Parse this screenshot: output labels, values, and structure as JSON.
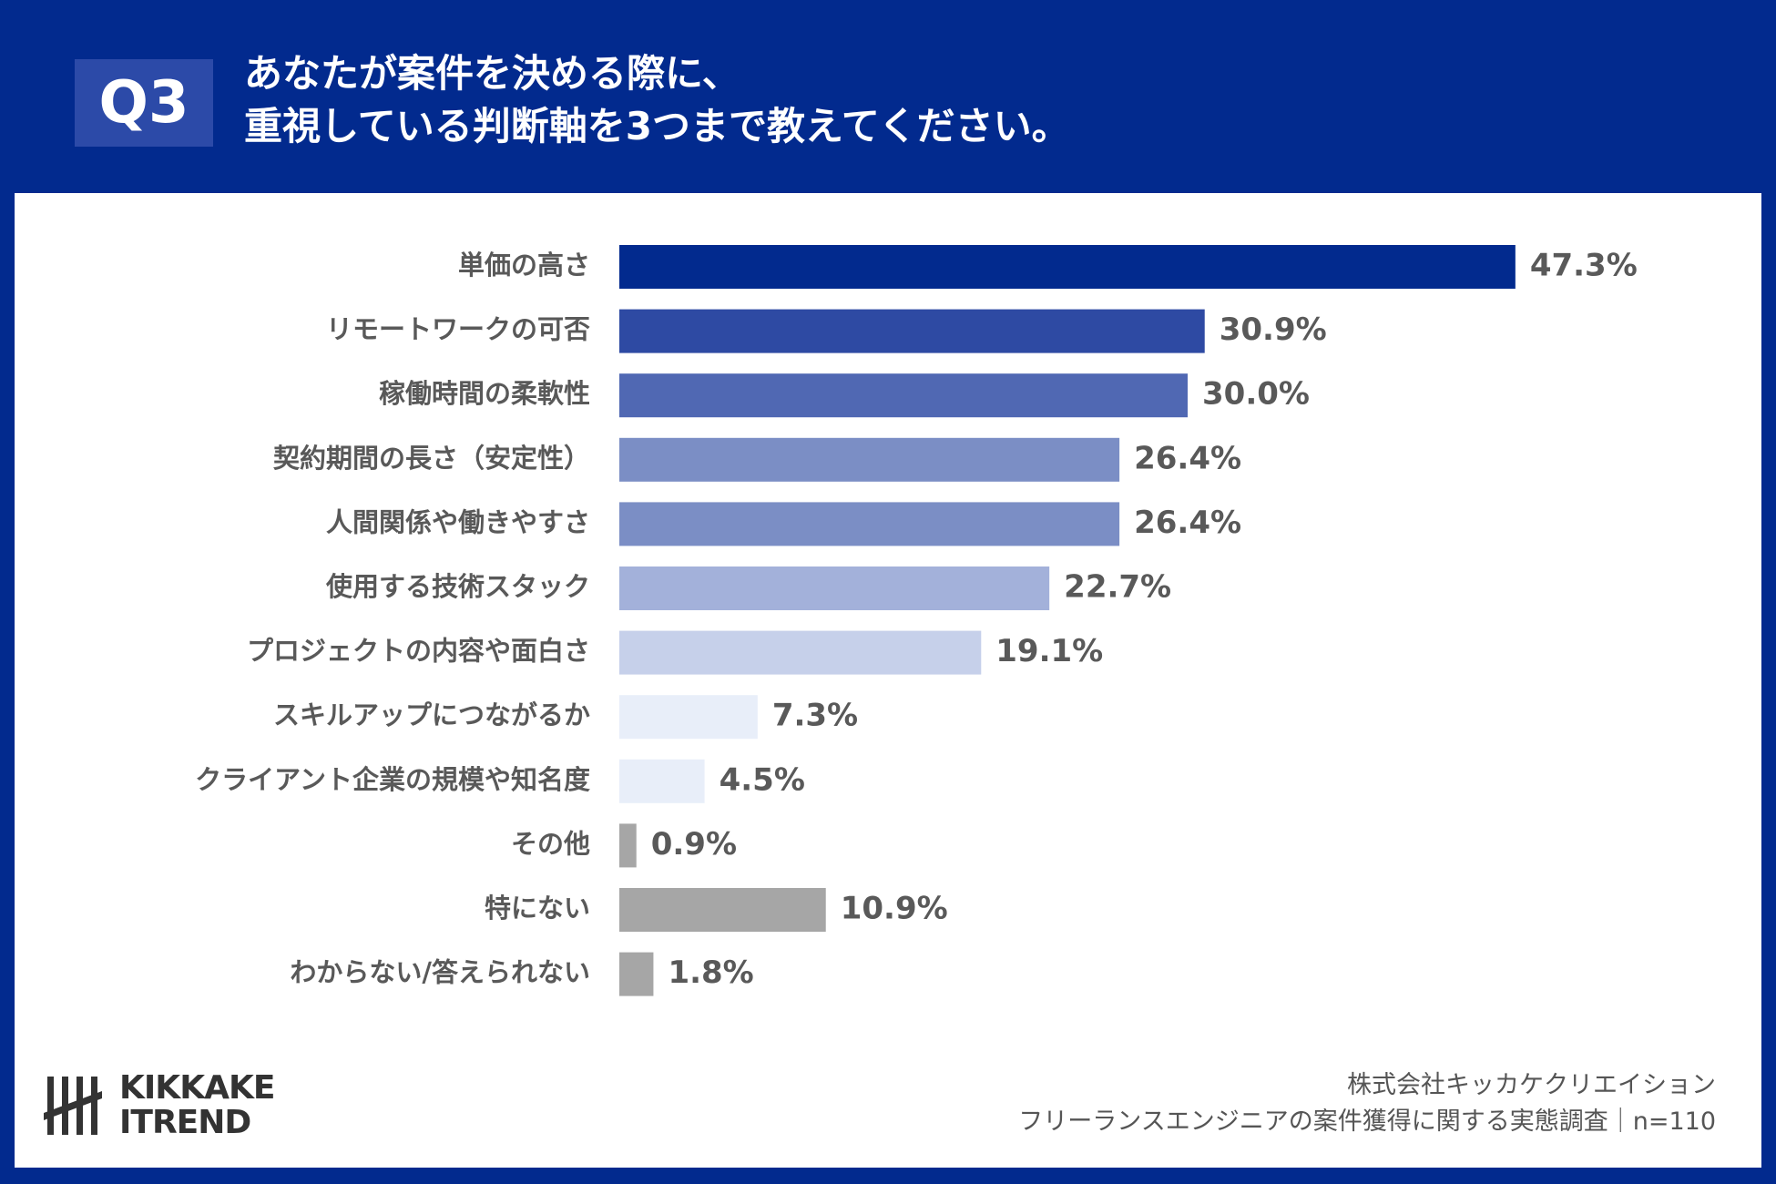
{
  "header": {
    "badge": "Q3",
    "title_line1": "あなたが案件を決める際に、",
    "title_line2": "重視している判断軸を3つまで教えてください。"
  },
  "chart_data": {
    "type": "bar",
    "orientation": "horizontal",
    "categories": [
      "単価の高さ",
      "リモートワークの可否",
      "稼働時間の柔軟性",
      "契約期間の長さ（安定性）",
      "人間関係や働きやすさ",
      "使用する技術スタック",
      "プロジェクトの内容や面白さ",
      "スキルアップにつながるか",
      "クライアント企業の規模や知名度",
      "その他",
      "特にない",
      "わからない/答えられない"
    ],
    "values": [
      47.3,
      30.9,
      30.0,
      26.4,
      26.4,
      22.7,
      19.1,
      7.3,
      4.5,
      0.9,
      10.9,
      1.8
    ],
    "value_labels": [
      "47.3%",
      "30.9%",
      "30.0%",
      "26.4%",
      "26.4%",
      "22.7%",
      "19.1%",
      "7.3%",
      "4.5%",
      "0.9%",
      "10.9%",
      "1.8%"
    ],
    "colors": [
      "#022a8e",
      "#2e4aa3",
      "#5068b3",
      "#7b8ec5",
      "#7b8ec5",
      "#a3b1da",
      "#c6d0ea",
      "#e8eef9",
      "#e8eef9",
      "#a6a6a6",
      "#a6a6a6",
      "#a6a6a6"
    ],
    "xlim": [
      0,
      50
    ],
    "grid": false,
    "legend": "none"
  },
  "footer": {
    "logo_line1": "KIKKAKE",
    "logo_line2": "ITREND",
    "credit_line1": "株式会社キッカケクリエイション",
    "credit_line2": "フリーランスエンジニアの案件獲得に関する実態調査｜n=110"
  }
}
